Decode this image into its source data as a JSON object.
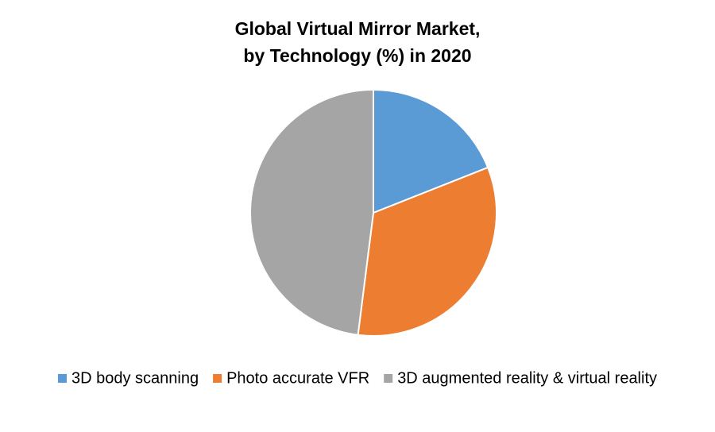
{
  "chart_data": {
    "type": "pie",
    "title": [
      "Global Virtual Mirror Market,",
      "by Technology (%) in 2020"
    ],
    "categories": [
      "3D body scanning",
      "Photo accurate VFR",
      "3D augmented reality & virtual reality"
    ],
    "values": [
      19,
      33,
      48
    ],
    "colors": [
      "#5b9bd5",
      "#ed7d31",
      "#a5a5a5"
    ],
    "legend": "bottom"
  }
}
